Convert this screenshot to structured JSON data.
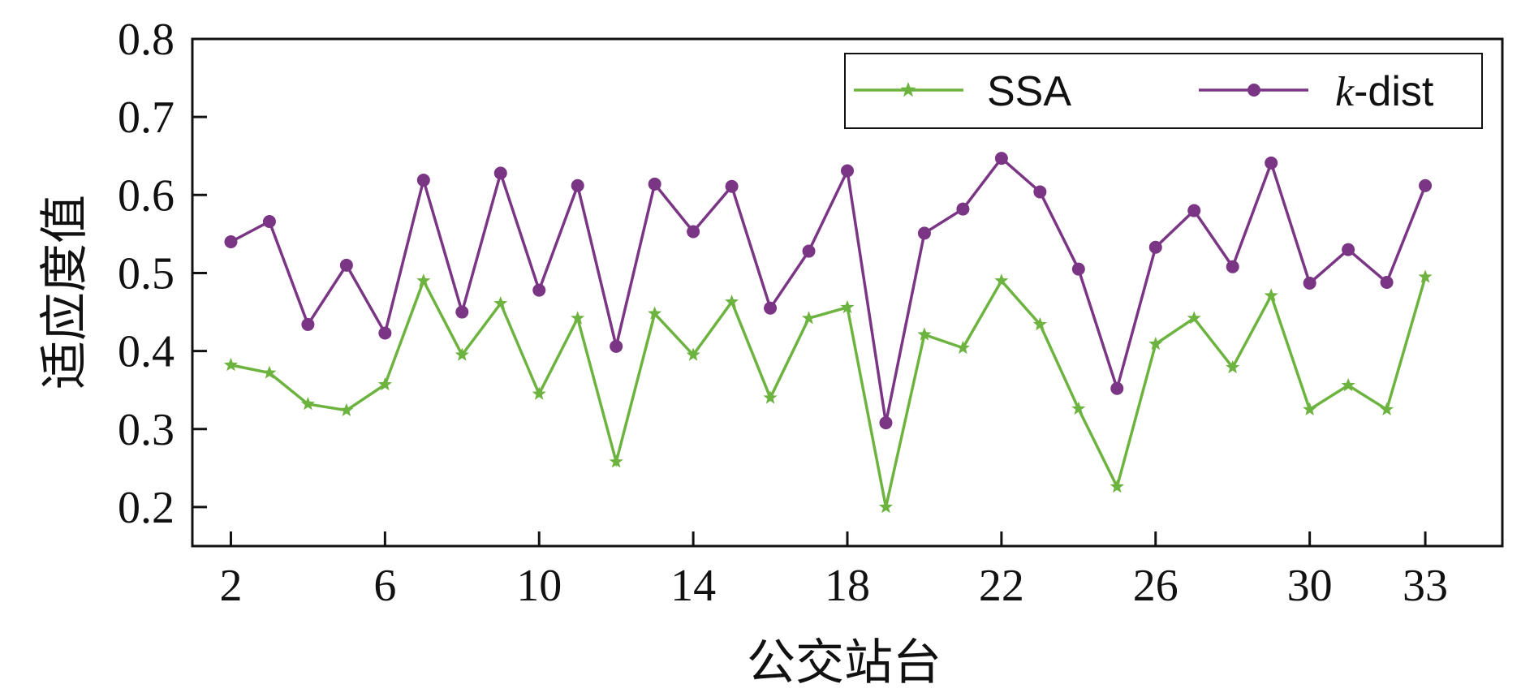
{
  "chart_data": {
    "type": "line",
    "xlabel": "公交站台",
    "ylabel": "适应度值",
    "ylim": [
      0.15,
      0.8
    ],
    "xlim": [
      1,
      35
    ],
    "x_ticks": [
      2,
      6,
      10,
      14,
      18,
      22,
      26,
      30,
      33
    ],
    "y_ticks": [
      0.2,
      0.3,
      0.4,
      0.5,
      0.6,
      0.7,
      0.8
    ],
    "x_tick_labels": [
      "2",
      "6",
      "10",
      "14",
      "18",
      "22",
      "26",
      "30",
      "33"
    ],
    "y_tick_labels": [
      "0.2",
      "0.3",
      "0.4",
      "0.5",
      "0.6",
      "0.7",
      "0.8"
    ],
    "legend_position": "top-right",
    "grid": false,
    "x": [
      2,
      3,
      4,
      5,
      6,
      7,
      8,
      9,
      10,
      11,
      12,
      13,
      14,
      15,
      16,
      17,
      18,
      19,
      20,
      21,
      22,
      23,
      24,
      25,
      26,
      27,
      28,
      29,
      30,
      31,
      32,
      33
    ],
    "series": [
      {
        "name": "SSA",
        "name_prefix": "",
        "name_suffix": "SSA",
        "color": "#6db33f",
        "marker": "star",
        "values": [
          0.382,
          0.372,
          0.332,
          0.324,
          0.357,
          0.49,
          0.395,
          0.461,
          0.345,
          0.442,
          0.258,
          0.448,
          0.395,
          0.463,
          0.34,
          0.442,
          0.456,
          0.2,
          0.421,
          0.404,
          0.49,
          0.434,
          0.326,
          0.226,
          0.409,
          0.442,
          0.379,
          0.471,
          0.325,
          0.356,
          0.325,
          0.495
        ]
      },
      {
        "name": "k-dist",
        "name_prefix": "k",
        "name_suffix": "-dist",
        "color": "#7b3585",
        "marker": "circle",
        "values": [
          0.54,
          0.566,
          0.434,
          0.51,
          0.423,
          0.619,
          0.45,
          0.628,
          0.478,
          0.612,
          0.406,
          0.614,
          0.553,
          0.611,
          0.455,
          0.528,
          0.631,
          0.308,
          0.551,
          0.582,
          0.647,
          0.604,
          0.505,
          0.352,
          0.533,
          0.58,
          0.508,
          0.641,
          0.487,
          0.53,
          0.488,
          0.612
        ]
      }
    ]
  }
}
